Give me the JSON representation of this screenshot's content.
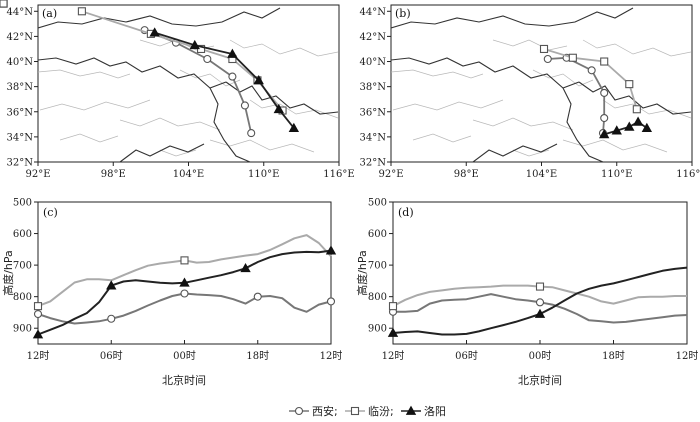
{
  "chart_data": [
    {
      "type": "map-trajectory",
      "panel_label": "(a)",
      "x_ticks": [
        "92°E",
        "98°E",
        "104°E",
        "110°E",
        "116°E"
      ],
      "y_ticks": [
        "44°N",
        "42°N",
        "40°N",
        "38°N",
        "36°N",
        "34°N",
        "32°N"
      ],
      "xlim": [
        92,
        116
      ],
      "ylim": [
        32,
        44.5
      ],
      "trajectories": [
        {
          "name": "西安",
          "marker": "circle",
          "color": "#777777",
          "points": [
            [
              100.5,
              42.5
            ],
            [
              103,
              41.5
            ],
            [
              105.5,
              40.2
            ],
            [
              107.5,
              38.8
            ],
            [
              108.5,
              36.5
            ],
            [
              109,
              34.3
            ]
          ]
        },
        {
          "name": "临汾",
          "marker": "square",
          "color": "#aaaaaa",
          "points": [
            [
              95.5,
              44
            ],
            [
              101,
              42.2
            ],
            [
              105,
              41
            ],
            [
              107.5,
              40.2
            ],
            [
              109.5,
              38.5
            ],
            [
              111.5,
              36.1
            ]
          ]
        },
        {
          "name": "洛阳",
          "marker": "triangle",
          "color": "#222222",
          "points": [
            [
              101.3,
              42.3
            ],
            [
              104.5,
              41.3
            ],
            [
              107.5,
              40.6
            ],
            [
              109.6,
              38.5
            ],
            [
              111.2,
              36.2
            ],
            [
              112.4,
              34.7
            ]
          ]
        }
      ]
    },
    {
      "type": "map-trajectory",
      "panel_label": "(b)",
      "x_ticks": [
        "92°E",
        "98°E",
        "104°E",
        "110°E",
        "116°E"
      ],
      "y_ticks": [
        "44°N",
        "42°N",
        "40°N",
        "38°N",
        "36°N",
        "34°N",
        "32°N"
      ],
      "xlim": [
        92,
        116
      ],
      "ylim": [
        32,
        44.5
      ],
      "trajectories": [
        {
          "name": "西安",
          "marker": "circle",
          "color": "#777777",
          "points": [
            [
              104.5,
              40.2
            ],
            [
              106,
              40.3
            ],
            [
              108,
              39.3
            ],
            [
              109,
              37.5
            ],
            [
              109,
              35.5
            ],
            [
              108.9,
              34.3
            ]
          ]
        },
        {
          "name": "临汾",
          "marker": "square",
          "color": "#aaaaaa",
          "points": [
            [
              104.2,
              41
            ],
            [
              106.5,
              40.3
            ],
            [
              109,
              40
            ],
            [
              111,
              38.2
            ],
            [
              111.6,
              36.2
            ]
          ]
        },
        {
          "name": "洛阳",
          "marker": "triangle",
          "color": "#222222",
          "points": [
            [
              109,
              34.2
            ],
            [
              110,
              34.5
            ],
            [
              111,
              34.8
            ],
            [
              111.7,
              35.2
            ],
            [
              112.4,
              34.7
            ]
          ]
        }
      ]
    },
    {
      "type": "line",
      "panel_label": "(c)",
      "xlabel": "北京时间",
      "ylabel": "高度/hPa",
      "x_ticks": [
        "12时",
        "06时",
        "00时",
        "18时",
        "12时"
      ],
      "x_range_hours": [
        0,
        72
      ],
      "ylim": [
        500,
        950
      ],
      "y_ticks": [
        500,
        600,
        700,
        800,
        900
      ],
      "y_inverted": true,
      "series": [
        {
          "name": "西安",
          "marker": "circle",
          "color": "#777777",
          "x": [
            0,
            3,
            6,
            9,
            12,
            15,
            18,
            21,
            24,
            27,
            30,
            33,
            36,
            39,
            42,
            45,
            48,
            51,
            54,
            57,
            60,
            63,
            66,
            69,
            72
          ],
          "values": [
            855,
            868,
            878,
            885,
            882,
            878,
            870,
            860,
            845,
            828,
            812,
            798,
            790,
            793,
            795,
            798,
            808,
            822,
            800,
            798,
            805,
            835,
            848,
            825,
            815
          ],
          "marker_idx": [
            0,
            6,
            12,
            18,
            24
          ]
        },
        {
          "name": "临汾",
          "marker": "square",
          "color": "#aaaaaa",
          "x": [
            0,
            3,
            6,
            9,
            12,
            15,
            18,
            21,
            24,
            27,
            30,
            33,
            36,
            39,
            42,
            45,
            48,
            51,
            54,
            57,
            60,
            63,
            66,
            69,
            72
          ],
          "values": [
            830,
            815,
            785,
            755,
            745,
            745,
            748,
            732,
            716,
            702,
            695,
            690,
            685,
            692,
            690,
            682,
            676,
            670,
            665,
            652,
            634,
            615,
            605,
            630,
            672
          ],
          "marker_idx": [
            0,
            12,
            36,
            54,
            72
          ]
        },
        {
          "name": "洛阳",
          "marker": "triangle",
          "color": "#222222",
          "x": [
            0,
            3,
            6,
            9,
            12,
            15,
            18,
            21,
            24,
            27,
            30,
            33,
            36,
            39,
            42,
            45,
            48,
            51,
            54,
            57,
            60,
            63,
            66,
            69,
            72
          ],
          "values": [
            920,
            905,
            890,
            870,
            852,
            818,
            765,
            752,
            748,
            752,
            756,
            758,
            756,
            748,
            740,
            732,
            722,
            710,
            690,
            675,
            665,
            660,
            658,
            659,
            654
          ],
          "marker_idx": [
            0,
            6,
            12,
            17,
            24
          ]
        }
      ]
    },
    {
      "type": "line",
      "panel_label": "(d)",
      "xlabel": "北京时间",
      "ylabel": "高度/hPa",
      "x_ticks": [
        "12时",
        "06时",
        "00时",
        "18时",
        "12时"
      ],
      "x_range_hours": [
        0,
        72
      ],
      "ylim": [
        500,
        950
      ],
      "y_ticks": [
        500,
        600,
        700,
        800,
        900
      ],
      "y_inverted": true,
      "series": [
        {
          "name": "西安",
          "marker": "circle",
          "color": "#777777",
          "x": [
            0,
            3,
            6,
            9,
            12,
            15,
            18,
            21,
            24,
            27,
            30,
            33,
            36,
            39,
            42,
            45,
            48,
            51,
            54,
            57,
            60,
            63,
            66,
            69,
            72
          ],
          "values": [
            848,
            848,
            845,
            822,
            812,
            810,
            808,
            800,
            792,
            800,
            808,
            812,
            818,
            825,
            838,
            855,
            875,
            878,
            882,
            880,
            875,
            870,
            865,
            860,
            858
          ],
          "marker_idx": [
            0,
            12,
            36,
            48,
            72
          ]
        },
        {
          "name": "临汾",
          "marker": "square",
          "color": "#aaaaaa",
          "x": [
            0,
            3,
            6,
            9,
            12,
            15,
            18,
            21,
            24,
            27,
            30,
            33,
            36,
            39,
            42,
            45,
            48,
            51,
            54,
            57,
            60,
            63,
            66,
            69,
            72
          ],
          "values": [
            830,
            810,
            795,
            785,
            780,
            775,
            772,
            770,
            768,
            765,
            765,
            765,
            768,
            770,
            780,
            790,
            800,
            815,
            822,
            812,
            802,
            800,
            800,
            798,
            798
          ],
          "marker_idx": [
            0,
            12,
            36,
            48,
            72
          ]
        },
        {
          "name": "洛阳",
          "marker": "triangle",
          "color": "#222222",
          "x": [
            0,
            3,
            6,
            9,
            12,
            15,
            18,
            21,
            24,
            27,
            30,
            33,
            36,
            39,
            42,
            45,
            48,
            51,
            54,
            57,
            60,
            63,
            66,
            69,
            72
          ],
          "values": [
            915,
            912,
            910,
            915,
            920,
            920,
            918,
            910,
            900,
            890,
            880,
            868,
            855,
            835,
            812,
            790,
            775,
            765,
            758,
            748,
            738,
            728,
            718,
            712,
            708
          ],
          "marker_idx": [
            0,
            12,
            36,
            48,
            72
          ]
        }
      ]
    }
  ],
  "legend": {
    "position": "bottom-center",
    "items": [
      {
        "marker": "circle",
        "label": "西安;",
        "color": "#777777"
      },
      {
        "marker": "square",
        "label": "临汾;",
        "color": "#aaaaaa"
      },
      {
        "marker": "triangle",
        "label": "洛阳",
        "color": "#222222"
      }
    ]
  }
}
